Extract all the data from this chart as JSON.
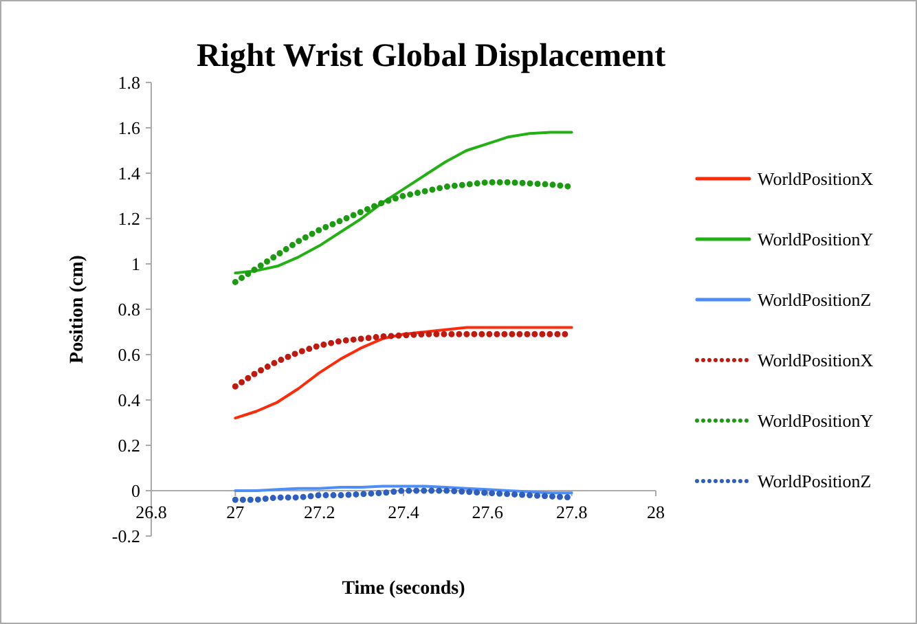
{
  "chart_data": {
    "type": "line",
    "title": "Right Wrist Global Displacement",
    "xlabel": "Time (seconds)",
    "ylabel": "Position (cm)",
    "x": [
      27,
      27.05,
      27.1,
      27.15,
      27.2,
      27.25,
      27.3,
      27.35,
      27.4,
      27.45,
      27.5,
      27.55,
      27.6,
      27.65,
      27.7,
      27.75,
      27.8
    ],
    "xlim": [
      26.8,
      28
    ],
    "xticks": [
      26.8,
      27,
      27.2,
      27.4,
      27.6,
      27.8,
      28
    ],
    "ylim": [
      -0.2,
      1.8
    ],
    "yticks": [
      -0.2,
      0,
      0.2,
      0.4,
      0.6,
      0.8,
      1,
      1.2,
      1.4,
      1.6,
      1.8
    ],
    "grid": false,
    "legend": "right",
    "series": [
      {
        "name": "WorldPositionX",
        "color": "#ff2a0a",
        "line_style": "solid",
        "values": [
          0.32,
          0.35,
          0.39,
          0.45,
          0.52,
          0.58,
          0.63,
          0.67,
          0.69,
          0.7,
          0.71,
          0.72,
          0.72,
          0.72,
          0.72,
          0.72,
          0.72
        ]
      },
      {
        "name": "WorldPositionY",
        "color": "#22b014",
        "line_style": "solid",
        "values": [
          0.96,
          0.97,
          0.99,
          1.03,
          1.08,
          1.14,
          1.2,
          1.27,
          1.33,
          1.39,
          1.45,
          1.5,
          1.53,
          1.56,
          1.575,
          1.58,
          1.58
        ]
      },
      {
        "name": "WorldPositionZ",
        "color": "#4f8ef7",
        "line_style": "solid",
        "values": [
          0,
          0,
          0.005,
          0.01,
          0.01,
          0.015,
          0.015,
          0.02,
          0.02,
          0.02,
          0.015,
          0.01,
          0.005,
          0,
          -0.005,
          -0.01,
          -0.01
        ]
      },
      {
        "name": "WorldPositionX",
        "color": "#c0190f",
        "line_style": "dotted",
        "values": [
          0.46,
          0.52,
          0.57,
          0.61,
          0.64,
          0.66,
          0.67,
          0.68,
          0.685,
          0.69,
          0.69,
          0.69,
          0.69,
          0.69,
          0.69,
          0.69,
          0.69
        ]
      },
      {
        "name": "WorldPositionY",
        "color": "#1c9a12",
        "line_style": "dotted",
        "values": [
          0.92,
          0.98,
          1.04,
          1.1,
          1.15,
          1.19,
          1.23,
          1.27,
          1.3,
          1.32,
          1.34,
          1.35,
          1.36,
          1.36,
          1.355,
          1.35,
          1.34
        ]
      },
      {
        "name": "WorldPositionZ",
        "color": "#2d5fc0",
        "line_style": "dotted",
        "values": [
          -0.04,
          -0.04,
          -0.03,
          -0.03,
          -0.02,
          -0.02,
          -0.015,
          -0.01,
          0,
          0,
          0,
          -0.005,
          -0.01,
          -0.015,
          -0.02,
          -0.025,
          -0.03
        ]
      }
    ]
  }
}
